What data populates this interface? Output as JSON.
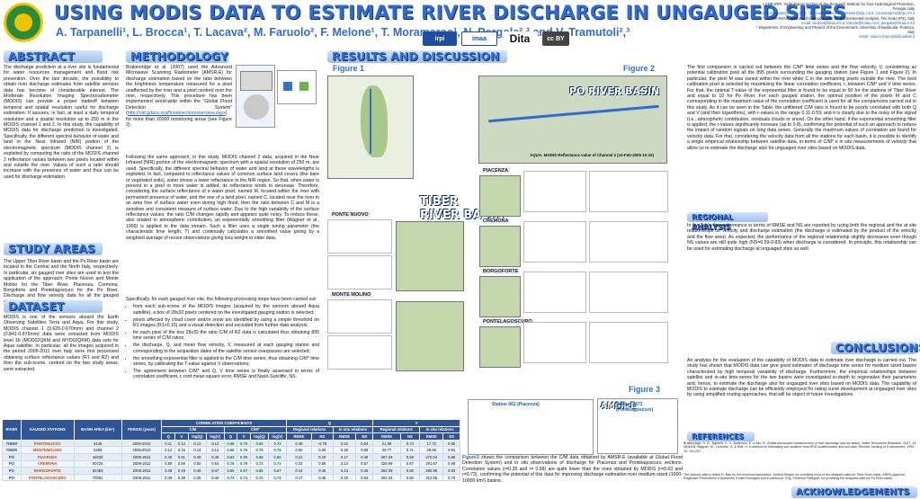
{
  "header": {
    "title": "USING MODIS DATA TO ESTIMATE RIVER DISCHARGE IN UNGAUGED SITES",
    "authors": "A. Tarpanelli¹, L. Brocca¹, T. Lacava², M. Faruolo², F. Melone¹, T. Moramarco¹, N. Pergola²,³ and V. Tramutoli²,³",
    "affiliations": [
      "¹ CNR-IRPI, Hydrological Section of the Research Institute for Geo-Hydrological Protection, Perugia, Italy",
      "email: a.tarpanelli@irpi.cnr.it, l.brocca@irpi.cnr.it, f.melone@irpi.cnr.it, t.moramarco@irpi.cnr.it",
      "² CNR-IMAA, Institute of Methodologies for Environmental Analysis, Tito Scalo (PZ), Italy",
      "email: lacava@imaa.cnr.it, faruolo@imaa.cnr.it, pergola@imaa.cnr.it",
      "³ Department of Engineering and Physics of the Environment, University of Basilicata, Potenza, Italy",
      "email: valerio.tramutoli@unibas.it"
    ],
    "logos": [
      "irpi",
      "imaa",
      "Dita",
      "cc BY"
    ]
  },
  "abstract": {
    "title": "ABSTRACT",
    "text": "The discharge prediction at a river site is fundamental for water resources management and flood risk prevention. Over the last decade, the possibility to obtain river discharge estimates from satellite sensors data has become of considerable interest. The Moderate Resolution Imaging Spectroradiometer (MODIS) can provide a proper tradeoff between temporal and spatial resolution useful for discharge estimation. It assures, in fact, at least a daily temporal resolution and a spatial resolution up to 250 m in the MODIS channel 1 and 2. In this study, the capability of MODIS data for discharge prediction is investigated. Specifically, the different spectral behavior of water and land in the Near Infrared (NIR) portion of the electromagnetic spectrum (MODIS channel 2) is exploited by computing the ratio of the MODIS channel 2 reflectance values between two pixels located within and outside the river. Values of such a ratio should increase with the presence of water and thus can be used for discharge estimation."
  },
  "study_areas": {
    "title": "STUDY AREAS",
    "text": "The Upper Tiber River basin and the Po River basin are located in the Central and the North Italy, respectively. In particular, six gauged river sites are used to test the application of the approach: Ponte Nuovo and Monte Molino for the Tiber River, Piacenza, Cremona, Borgoforte and Pontelagoscuro for the Po River. Discharge and flow velocity data for all the gauged stations are used."
  },
  "dataset": {
    "title": "DATASET",
    "text": "MODIS is one of the sensors aboard the Earth Observing Satellites Terra and Aqua. For this study, MODIS channel 1 (0.620-0.670mm) and channel 2 (0.841-0.876mm) data were extracted from MODIS level 1b (MOD02QKM and MYD02QKM) data sets for Aqua satellite. In particular, all the images acquired in the period 2005-2011 over Italy were first processed obtaining surface reflectance values (R1 and R2) and then the sub-scene, centred on the two study areas, were extracted."
  },
  "methodology": {
    "title": "METHODOLOGY",
    "intro": "Brakenridge et al. (2007) used the Advanced Microwave Scanning Radiometer (AMSR-E) for discharge estimation based on the ratio between the brightness temperature measured for a pixel unaffected by the river and a pixel centred over the river, respectively. This procedure has been implemented world-wide within the \"Global Flood Detection System\" (",
    "link": "http://old.gdacs.org/floodetection/overview.aspx",
    "intro_tail": ") for more than 10000 monitoring areas (see Figure 3).",
    "body": "Following the same approach, in this study, MODIS channel 2 data, acquired in the Near Infrared (NIR) portion of the electromagnetic spectrum with a spatial resolution of 250 m, are used. Specifically, the different spectral behavior of water and land at these wavelengths is exploited. In fact, compared to reflectance values of common surface land covers (like bare or vegetated soils), water shows a lower reflectance in the NIR region. So that, when water is present in a pixel or more water is added, its reflectance tends to decrease. Therefore, considering the surface reflectance of a water pixel, named M, located within the river with permanent presence of water, and the one of a land pixel, named C, located near the river in an area free of surface water even during high flood, then the ratio between C and M is a sensitive and consistent measure of surface water. Due to the high variability of the surface reflectance values, the ratio C/M changes rapidly and appears quite noisy. To reduce these, also related to atmospheric contribution, an exponentially smoothing filter (Wagner et al., 1999) is applied to the data stream. Such a filter uses a single tuning parameter (the characteristic time length, T) and continually calculates a smoothed value giving by a weighted average of recent observations giving less weight to older data.",
    "steps_intro": "Specifically, for each gauged river site, the following processing steps have been carried out:",
    "steps": [
      "from each sub-scene of the MODIS images (acquired by the sensors aboard Aqua satellite), a box of 28x32 pixels centered on the investigated gauging station is selected;",
      "pixels affected by cloud cover and/or snow are identified by using a simple threshold on R1 images (R1>0.15) and a visual detection and excluded from further data analysis;",
      "for each pixel of the box 28x32 the ratio C/M of R2 data is calculated thus obtaining 895 time series of C/M ratios;",
      "the discharge, Q, and mean flow velocity, V, measured at each gauging station and corresponding to the acquisition dates of the satellite sensor overpasses are selected;",
      "the smoothing exponential filter is applied to the C/M time series, thus obtaining C/M* time series, by calibrating the T-value against V observations;",
      "The agreement between C/M* and Q, V time series is finally assessed in terms of correlation coefficient, r, root mean square error, RMSE and Nash-Sutcliffe, NS."
    ]
  },
  "results": {
    "title": "RESULTS AND DISCUSSION",
    "fig1": "Figure 1",
    "fig2": "Figure 2",
    "fig3": "Figure 3",
    "po_basin": "PO RIVER BASIN",
    "tiber_basin_1": "TIBER",
    "tiber_basin_2": "RIVER BASIN",
    "aqua_caption": "AQUA- MODIS Reflectance value of Channel 2 (10-Feb-2005 10:10)",
    "stations": [
      "PONTE NUOVO",
      "MONTE MOLINO",
      "PIACENZA",
      "CREMONA",
      "BORGOFORTE",
      "PONTELAGOSCURO"
    ],
    "amsre_label": "AMSR-E",
    "site1": "Station 662 (Piacenza)",
    "site2": "Station 2673 (Pontelagoscuro)",
    "fig3_caption_strong": "Figure3",
    "fig3_caption": " shows the comparison between the C/M data obtained by AMSR-E (available at Global Flood Detection System) and in situ observations of discharge for Piacenza and Pontelagoscuro sections. Correlation values (r=0.35 and r= 0.58) are quite lower than the ones obtained by MODIS (r=0.63 and r=0.73), confirming the potential of this data for improving discharge estimation over medium-sized (1000-10000 km²) basins.",
    "right_text": "The first comparison is carried out between the C/M* time series and the flow velocity, V, considering as potential calibration pixel all the 895 pixels surrounding the gauging station (see Figure 1 and Figure 2). In particular, the pixel M was varied within the river while C in the remaining pixels outside the river. The best calibration pixel is selected by maximizing the linear correlation coefficient, r, between C/M* and V time series. For that, the optimal T-value of the exponential filter is found to be equal to 90 for the stations of Tiber River and equal to 10 for Po River. For each gauged station, the optimal position of the pixels M and C corresponding to the maximum value of the correlation coefficient is used for all the comparisons carried out in this study. As it can be seen in the Table, the unfiltered C/M ratio is found to be poorly correlated with both Q and V (and their logarithms), with r-values in the range 0.11-0.59; and it is clearly due to the noisy of the signal (i.e., atmospheric contribution, residuals clouds or snow). On the other hand, if the exponential smoothing filter is applied, the r-values significantly increase (up to 0.8), confirming the potential of such an approach to reduce the impact of random signals on long data series. Generally the maximum values of correlation are found for velocity data. For that, considering the velocity data from all the stations for each basin, it is possible to identify a single empirical relationship between satellite data, in terms of C/M* e in situ measurements of velocity that allow us to estimate the discharge also for unguaged river sites based on MODIS data."
  },
  "regional": {
    "title": "REGIONAL ANALYSIS",
    "text": "In the Table the performance in terms of RMSE and NS are reported by using both the regional and the at site relationships for velocity and discharge estimation (the discharge is estimated by the product of the velocity and the flow area). As expected, the performance of the regional relationship slightly decreases even though NS values are still quite high (NS=0.59-0.83) when discharge is considered. In principle, this relationship can be used for estimating discharge at unguaged sites as well."
  },
  "conclusions": {
    "title": "CONCLUSIONS",
    "text": "An analysis for the evaluation of the capability of MODIS data to estimate river discharge is carried out. The study has shown that MODIS data can give good estimates of discharge time series for medium sized basins characterized by high temporal variability of discharge. Furthermore, the empirical relationships between satellite and in-situ time-series for the two basins were investigated in-depth to regionalize their parameters and, hence, to estimate the discharge also for ungauged river sites based on MODIS data. The capability of MODIS to estimate discharge can be efficiently employed for rating curve development at ungauged river sites by using simplified routing approaches, that will be object of future investigations."
  },
  "references": {
    "title": "REFERENCES",
    "text": "Brakenridge, G. R., Nghiem, S. V., Anderson, E. & Mic, R. Orbital microwave measurement of river discharge and ice status. Water Resources Research, 2007, 43, W04405. Wagner, W., Lemoine, G. & Rott, H. A method for estimating soil moisture from ERS scatterometer and soil data. Remote Sensing of Environment, 1999, 70, 191-207."
  },
  "acknowledgements": {
    "title": "ACKNOWLEDGEMENTS",
    "text": "The authors wish to thank R. Bao for the technical assistance, Umbria Region for providing most of the analyzed data for Tiber River basin, ARPA (Agenzia Regionale Prevenzione e Ambiente) Emilia Romagna and in particular, Eng. Federica Pellegrini, for providing the analyzed data for Po River basin."
  },
  "table": {
    "header_top": [
      "RIVER",
      "GAUGED STATIONS",
      "BASIN AREA (km²)",
      "PERIOD (years)",
      "CORRELATION COEFFICIENTS",
      "Q",
      "V"
    ],
    "cm_label": "C/M",
    "cms_label": "C/M*",
    "sub_q": "Regional relations",
    "sub_q2": "In situ relations",
    "sub_v": "Regional relations",
    "sub_v2": "In situ relations",
    "cols": [
      "Q",
      "V",
      "log(Q)",
      "log(V)",
      "Q",
      "V",
      "log(Q)",
      "log(V)",
      "RMSE",
      "NS",
      "RMSE",
      "NS",
      "RMSE",
      "NS",
      "RMSE",
      "NS"
    ],
    "rows": [
      [
        "TIBER",
        "PONTENUOVO",
        "4135",
        "2006-2010",
        "0.11",
        "0.14",
        "0.12",
        "0.12",
        "0.65",
        "0.79",
        "0.60",
        "0.79",
        "0.49",
        "-0.78",
        "0.22",
        "0.64",
        "21.59",
        "0.74",
        "17.72",
        "0.80"
      ],
      [
        "TIBER",
        "MONTEMOLINO",
        "5269",
        "2006-2010",
        "0.12",
        "0.15",
        "0.14",
        "0.14",
        "0.66",
        "0.79",
        "0.79",
        "0.78",
        "0.50",
        "0.28",
        "0.29",
        "0.58",
        "30.77",
        "0.71",
        "28.86",
        "0.81"
      ],
      [
        "PO",
        "PIACENZA",
        "42030",
        "2005-2011",
        "0.40",
        "0.51",
        "0.48",
        "0.49",
        "0.63",
        "0.60",
        "0.65",
        "0.66",
        "0.21",
        "0.19",
        "0.17",
        "0.46",
        "297.29",
        "0.59",
        "270.04",
        "0.66"
      ],
      [
        "PO",
        "CREMONA",
        "50726",
        "2005-2011",
        "0.59",
        "0.56",
        "0.56",
        "0.54",
        "0.76",
        "0.76",
        "0.73",
        "0.74",
        "0.22",
        "0.09",
        "0.13",
        "0.57",
        "328.99",
        "0.67",
        "291.67",
        "0.69"
      ],
      [
        "PO",
        "BORGOFORTE",
        "62450",
        "2005-2011",
        "0.48",
        "0.48",
        "0.46",
        "0.47",
        "0.65",
        "0.67",
        "0.66",
        "0.67",
        "0.14",
        "0.45",
        "0.14",
        "0.45",
        "262.39",
        "0.80",
        "260.98",
        "0.83"
      ],
      [
        "PO",
        "PONTELAGOSCURO",
        "70091",
        "2005-2011",
        "0.49",
        "0.48",
        "0.45",
        "0.46",
        "0.73",
        "0.74",
        "0.70",
        "0.73",
        "0.17",
        "0.46",
        "0.16",
        "0.53",
        "302.34",
        "0.80",
        "312.55",
        "0.79"
      ]
    ]
  },
  "colors": {
    "accent": "#2f6bd1",
    "dark": "#0d2f73",
    "orange": "#e36b00",
    "green": "#2a8c3a"
  }
}
